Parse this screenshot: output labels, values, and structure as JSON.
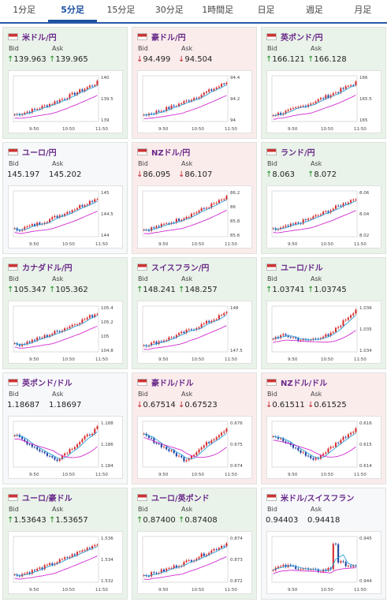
{
  "tabs": [
    "1分足",
    "5分足",
    "15分足",
    "30分足",
    "1時間足",
    "日足",
    "週足",
    "月足"
  ],
  "active_tab": 1,
  "labels": {
    "bid": "Bid",
    "ask": "Ask"
  },
  "pairs": [
    {
      "name": "米ドル/円",
      "bid": "139.963",
      "ask": "139.965",
      "dir": "up",
      "yticks": [
        "140",
        "139.5",
        "139"
      ],
      "xticks": [
        "9:50",
        "10:50",
        "11:50"
      ],
      "trend": "up"
    },
    {
      "name": "豪ドル/円",
      "bid": "94.499",
      "ask": "94.504",
      "dir": "down",
      "yticks": [
        "94.4",
        "94.2",
        "94"
      ],
      "xticks": [
        "9:50",
        "10:50",
        "11:50"
      ],
      "trend": "up"
    },
    {
      "name": "英ポンド/円",
      "bid": "166.121",
      "ask": "166.128",
      "dir": "up",
      "yticks": [
        "166",
        "165.5",
        "165"
      ],
      "xticks": [
        "9:50",
        "10:50",
        "11:50"
      ],
      "trend": "up"
    },
    {
      "name": "ユーロ/円",
      "bid": "145.197",
      "ask": "145.202",
      "dir": "none",
      "yticks": [
        "145",
        "144.5",
        "144"
      ],
      "xticks": [
        "9:50",
        "10:50",
        "11:50"
      ],
      "trend": "up"
    },
    {
      "name": "NZドル/円",
      "bid": "86.095",
      "ask": "86.107",
      "dir": "down",
      "yticks": [
        "86.2",
        "86",
        "85.8",
        "85.6"
      ],
      "xticks": [
        "9:50",
        "10:50",
        "11:50"
      ],
      "trend": "up"
    },
    {
      "name": "ランド/円",
      "bid": "8.063",
      "ask": "8.072",
      "dir": "up",
      "yticks": [
        "8.06",
        "8.04",
        "8.02"
      ],
      "xticks": [
        "9:50",
        "10:50",
        "11:50"
      ],
      "trend": "up"
    },
    {
      "name": "カナダドル/円",
      "bid": "105.347",
      "ask": "105.362",
      "dir": "up",
      "yticks": [
        "105.4",
        "105.2",
        "105",
        "104.8"
      ],
      "xticks": [
        "9:50",
        "10:50",
        "11:50"
      ],
      "trend": "up"
    },
    {
      "name": "スイスフラン/円",
      "bid": "148.241",
      "ask": "148.257",
      "dir": "up",
      "yticks": [
        "148",
        "147.5"
      ],
      "xticks": [
        "9:50",
        "10:50",
        "11:50"
      ],
      "trend": "up"
    },
    {
      "name": "ユーロ/ドル",
      "bid": "1.03741",
      "ask": "1.03745",
      "dir": "up",
      "yticks": [
        "1.036",
        "1.035",
        "1.034"
      ],
      "xticks": [
        "9:50",
        "10:50",
        "11:50"
      ],
      "trend": "lateup"
    },
    {
      "name": "英ポンド/ドル",
      "bid": "1.18687",
      "ask": "1.18697",
      "dir": "none",
      "yticks": [
        "1.188",
        "1.186",
        "1.184"
      ],
      "xticks": [
        "9:50",
        "10:50",
        "11:50"
      ],
      "trend": "vshape"
    },
    {
      "name": "豪ドル/ドル",
      "bid": "0.67514",
      "ask": "0.67523",
      "dir": "down",
      "yticks": [
        "0.676",
        "0.675",
        "0.674"
      ],
      "xticks": [
        "9:50",
        "10:50",
        "11:50"
      ],
      "trend": "vshape"
    },
    {
      "name": "NZドル/ドル",
      "bid": "0.61511",
      "ask": "0.61525",
      "dir": "down",
      "yticks": [
        "0.616",
        "0.615",
        "0.614"
      ],
      "xticks": [
        "9:50",
        "10:50",
        "11:50"
      ],
      "trend": "vshape"
    },
    {
      "name": "ユーロ/豪ドル",
      "bid": "1.53643",
      "ask": "1.53657",
      "dir": "up",
      "yticks": [
        "1.536",
        "1.534",
        "1.532"
      ],
      "xticks": [
        "9:50",
        "10:50",
        "11:50"
      ],
      "trend": "up"
    },
    {
      "name": "ユーロ/英ポンド",
      "bid": "0.87400",
      "ask": "0.87408",
      "dir": "up",
      "yticks": [
        "0.874",
        "0.873",
        "0.872"
      ],
      "xticks": [
        "9:50",
        "10:50",
        "11:50"
      ],
      "trend": "up"
    },
    {
      "name": "米ドル/スイスフラン",
      "bid": "0.94403",
      "ask": "0.94418",
      "dir": "none",
      "yticks": [
        "0.945",
        "0.944"
      ],
      "xticks": [
        "9:50",
        "10:50",
        "11:50"
      ],
      "trend": "spike"
    }
  ],
  "colors": {
    "up_bg": "#e9f3e9",
    "down_bg": "#fbecec",
    "candle_up": "#d62828",
    "candle_down": "#1b3fa0",
    "ma_short": "#2aa0d8",
    "ma_long": "#d12bd1"
  }
}
